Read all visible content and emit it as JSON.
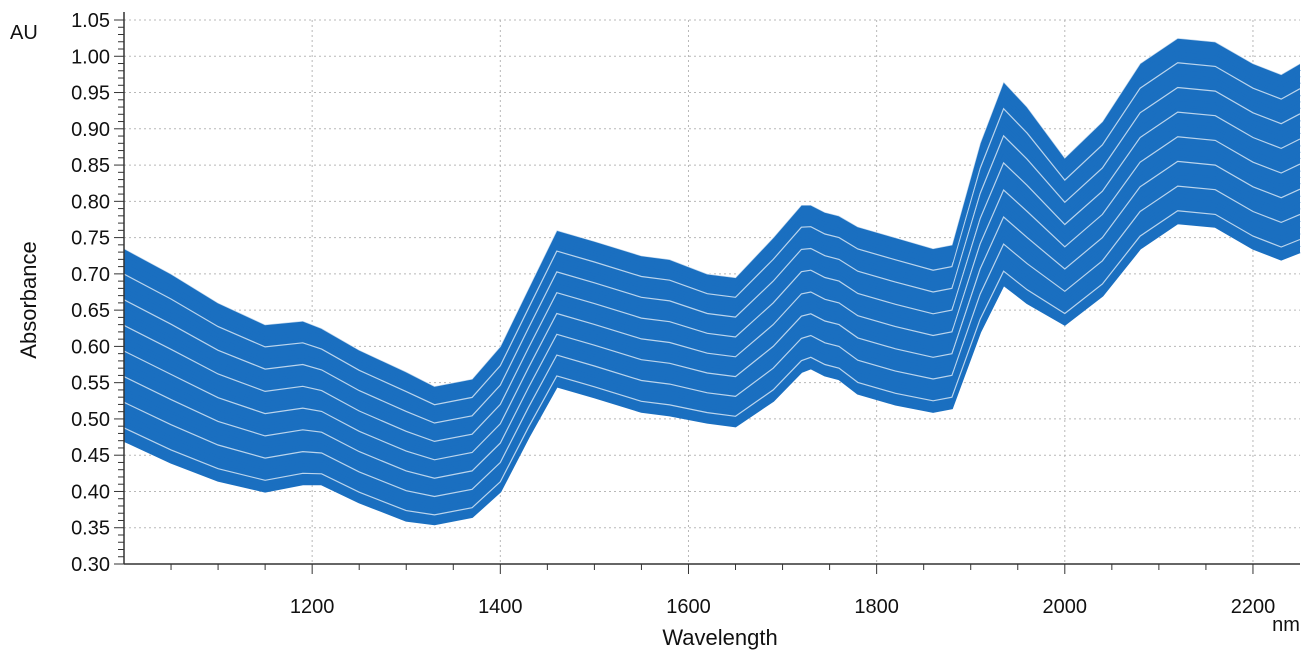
{
  "chart_data": {
    "type": "line",
    "title": "",
    "xlabel": "Wavelength",
    "ylabel": "Absorbance",
    "x_unit": "nm",
    "y_unit": "AU",
    "xlim": [
      1000,
      2250
    ],
    "ylim": [
      0.3,
      1.05
    ],
    "x_ticks": [
      1200,
      1400,
      1600,
      1800,
      2000,
      2200
    ],
    "y_ticks": [
      "0.30",
      "0.35",
      "0.40",
      "0.45",
      "0.50",
      "0.55",
      "0.60",
      "0.65",
      "0.70",
      "0.75",
      "0.80",
      "0.85",
      "0.90",
      "0.95",
      "1.00",
      "1.05"
    ],
    "grid": true,
    "legend": "none",
    "series_color": "#1a6fc0",
    "grid_color": "#b8b8b8",
    "x": [
      1000,
      1050,
      1100,
      1150,
      1190,
      1210,
      1250,
      1300,
      1330,
      1370,
      1400,
      1430,
      1460,
      1500,
      1550,
      1580,
      1620,
      1650,
      1690,
      1720,
      1730,
      1745,
      1760,
      1780,
      1820,
      1860,
      1880,
      1910,
      1935,
      1960,
      2000,
      2040,
      2080,
      2120,
      2160,
      2200,
      2230,
      2250
    ],
    "series_profiles": [
      {
        "values": [
          0.735,
          0.7,
          0.66,
          0.63,
          0.635,
          0.625,
          0.595,
          0.565,
          0.545,
          0.555,
          0.6,
          0.68,
          0.76,
          0.745,
          0.725,
          0.72,
          0.7,
          0.695,
          0.75,
          0.795,
          0.795,
          0.785,
          0.78,
          0.765,
          0.75,
          0.735,
          0.74,
          0.88,
          0.965,
          0.93,
          0.86,
          0.91,
          0.99,
          1.025,
          1.02,
          0.99,
          0.975,
          0.99
        ]
      },
      {
        "values": [
          0.47,
          0.44,
          0.415,
          0.4,
          0.41,
          0.41,
          0.385,
          0.36,
          0.355,
          0.365,
          0.4,
          0.475,
          0.545,
          0.53,
          0.51,
          0.505,
          0.495,
          0.49,
          0.525,
          0.565,
          0.57,
          0.56,
          0.555,
          0.535,
          0.52,
          0.51,
          0.515,
          0.62,
          0.685,
          0.66,
          0.63,
          0.67,
          0.735,
          0.77,
          0.765,
          0.735,
          0.72,
          0.73
        ]
      }
    ]
  }
}
